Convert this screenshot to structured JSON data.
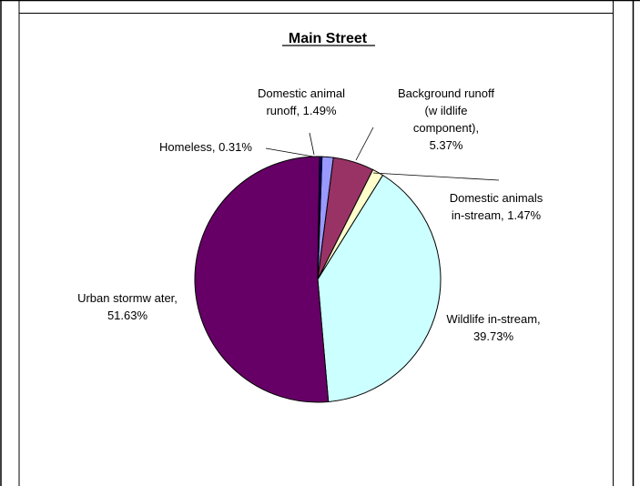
{
  "chart_data": {
    "type": "pie",
    "title": "Main Street",
    "slices": [
      {
        "label": [
          "Domestic animal",
          "runoff, 1.49%"
        ],
        "value": 1.49,
        "color": "#9999ff"
      },
      {
        "label": [
          "Background runoff",
          "(w ildlife",
          "component),",
          "5.37%"
        ],
        "value": 5.37,
        "color": "#993366"
      },
      {
        "label": [
          "Domestic animals",
          "in-stream, 1.47%"
        ],
        "value": 1.47,
        "color": "#ffffcc"
      },
      {
        "label": [
          "Wildlife in-stream,",
          "39.73%"
        ],
        "value": 39.73,
        "color": "#ccffff"
      },
      {
        "label": [
          "Urban stormw ater,",
          "51.63%"
        ],
        "value": 51.63,
        "color": "#660066"
      },
      {
        "label": [
          "Homeless, 0.31%"
        ],
        "value": 0.31,
        "color": "#000080"
      }
    ],
    "start_angle_deg": -88
  }
}
